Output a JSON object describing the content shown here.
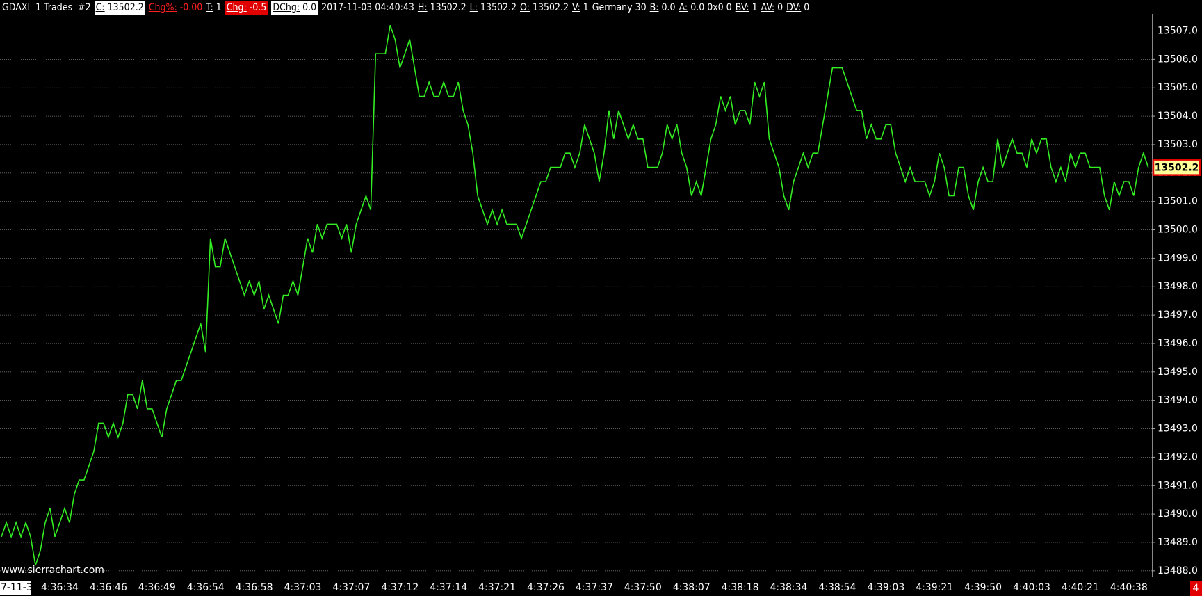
{
  "header": {
    "symbol": "GDAXI  1 Trades  #2",
    "fields": [
      {
        "label": "C:",
        "value": "13502.2"
      },
      {
        "label": "Chg%:",
        "value": "-0.00"
      },
      {
        "label": "T:",
        "value": "1"
      },
      {
        "label": "Chg:",
        "value": "-0.5"
      },
      {
        "label": "DChg:",
        "value": "0.0"
      },
      {
        "value": "2017-11-03 04:40:43"
      },
      {
        "label": "H:",
        "value": "13502.2"
      },
      {
        "label": "L:",
        "value": "13502.2"
      },
      {
        "label": "O:",
        "value": "13502.2"
      },
      {
        "label": "V:",
        "value": "1"
      },
      {
        "value": "Germany 30"
      },
      {
        "label": "B:",
        "value": "0.0"
      },
      {
        "label": "A:",
        "value": "0.0 0x0 0"
      },
      {
        "label": "BV:",
        "value": "1"
      },
      {
        "label": "AV:",
        "value": "0"
      },
      {
        "label": "DV:",
        "value": "0"
      }
    ]
  },
  "watermark": "www.sierrachart.com",
  "date_label": "7-11-3",
  "corner_label": "4",
  "chart_data": {
    "type": "line",
    "categories": [
      null,
      null,
      null,
      null,
      null,
      null,
      null,
      null,
      null,
      null,
      null,
      null,
      "4:36:34",
      null,
      null,
      null,
      null,
      null,
      null,
      null,
      null,
      null,
      "4:36:46",
      null,
      null,
      null,
      null,
      null,
      null,
      null,
      null,
      null,
      "4:36:49",
      null,
      null,
      null,
      null,
      null,
      null,
      null,
      null,
      null,
      "4:36:54",
      null,
      null,
      null,
      null,
      null,
      null,
      null,
      null,
      null,
      "4:36:58",
      null,
      null,
      null,
      null,
      null,
      null,
      null,
      null,
      null,
      "4:37:03",
      null,
      null,
      null,
      null,
      null,
      null,
      null,
      null,
      null,
      "4:37:07",
      null,
      null,
      null,
      null,
      null,
      null,
      null,
      null,
      null,
      "4:37:12",
      null,
      null,
      null,
      null,
      null,
      null,
      null,
      null,
      null,
      "4:37:14",
      null,
      null,
      null,
      null,
      null,
      null,
      null,
      null,
      null,
      "4:37:21",
      null,
      null,
      null,
      null,
      null,
      null,
      null,
      null,
      null,
      "4:37:26",
      null,
      null,
      null,
      null,
      null,
      null,
      null,
      null,
      null,
      "4:37:37",
      null,
      null,
      null,
      null,
      null,
      null,
      null,
      null,
      null,
      "4:37:50",
      null,
      null,
      null,
      null,
      null,
      null,
      null,
      null,
      null,
      "4:38:07",
      null,
      null,
      null,
      null,
      null,
      null,
      null,
      null,
      null,
      "4:38:18",
      null,
      null,
      null,
      null,
      null,
      null,
      null,
      null,
      null,
      "4:38:34",
      null,
      null,
      null,
      null,
      null,
      null,
      null,
      null,
      null,
      "4:38:54",
      null,
      null,
      null,
      null,
      null,
      null,
      null,
      null,
      null,
      "4:39:03",
      null,
      null,
      null,
      null,
      null,
      null,
      null,
      null,
      null,
      "4:39:21",
      null,
      null,
      null,
      null,
      null,
      null,
      null,
      null,
      null,
      "4:39:50",
      null,
      null,
      null,
      null,
      null,
      null,
      null,
      null,
      null,
      "4:40:03",
      null,
      null,
      null,
      null,
      null,
      null,
      null,
      null,
      null,
      "4:40:21",
      null,
      null,
      null,
      null,
      null,
      null,
      null,
      null,
      null,
      "4:40:38",
      null,
      null,
      null,
      null
    ],
    "series": [
      {
        "color": "#33ee22",
        "values": [
          13489.2,
          13489.7,
          13489.2,
          13489.7,
          13489.2,
          13489.7,
          13489.2,
          13488.2,
          13488.7,
          13489.7,
          13490.2,
          13489.2,
          13489.7,
          13490.2,
          13489.7,
          13490.7,
          13491.2,
          13491.2,
          13491.7,
          13492.2,
          13493.2,
          13493.2,
          13492.7,
          13493.2,
          13492.7,
          13493.2,
          13494.2,
          13494.2,
          13493.7,
          13494.7,
          13493.7,
          13493.7,
          13493.2,
          13492.7,
          13493.7,
          13494.2,
          13494.7,
          13494.7,
          13495.2,
          13495.7,
          13496.2,
          13496.7,
          13495.7,
          13499.7,
          13498.7,
          13498.7,
          13499.7,
          13499.2,
          13498.7,
          13498.2,
          13497.7,
          13498.2,
          13497.7,
          13498.2,
          13497.2,
          13497.7,
          13497.2,
          13496.7,
          13497.7,
          13497.7,
          13498.2,
          13497.7,
          13498.7,
          13499.7,
          13499.2,
          13500.2,
          13499.7,
          13500.2,
          13500.2,
          13500.2,
          13499.7,
          13500.2,
          13499.2,
          13500.2,
          13500.7,
          13501.2,
          13500.7,
          13506.2,
          13506.2,
          13506.2,
          13507.2,
          13506.7,
          13505.7,
          13506.2,
          13506.7,
          13505.7,
          13504.7,
          13504.7,
          13505.2,
          13504.7,
          13504.7,
          13505.2,
          13504.7,
          13504.7,
          13505.2,
          13504.2,
          13503.7,
          13502.7,
          13501.2,
          13500.7,
          13500.2,
          13500.7,
          13500.2,
          13500.7,
          13500.2,
          13500.2,
          13500.2,
          13499.7,
          13500.2,
          13500.7,
          13501.2,
          13501.7,
          13501.7,
          13502.2,
          13502.2,
          13502.2,
          13502.7,
          13502.7,
          13502.2,
          13502.7,
          13503.7,
          13503.2,
          13502.7,
          13501.7,
          13502.7,
          13504.2,
          13503.2,
          13504.2,
          13503.7,
          13503.2,
          13503.7,
          13503.2,
          13503.2,
          13502.2,
          13502.2,
          13502.2,
          13502.7,
          13503.7,
          13503.2,
          13503.7,
          13502.7,
          13502.2,
          13501.2,
          13501.7,
          13501.2,
          13502.2,
          13503.2,
          13503.7,
          13504.7,
          13504.2,
          13504.7,
          13503.7,
          13504.2,
          13504.2,
          13503.7,
          13505.2,
          13504.7,
          13505.2,
          13503.2,
          13502.7,
          13502.2,
          13501.2,
          13500.7,
          13501.7,
          13502.2,
          13502.7,
          13502.2,
          13502.7,
          13502.7,
          13503.7,
          13504.7,
          13505.7,
          13505.7,
          13505.7,
          13505.2,
          13504.7,
          13504.2,
          13504.2,
          13503.2,
          13503.7,
          13503.2,
          13503.2,
          13503.7,
          13503.7,
          13502.7,
          13502.2,
          13501.7,
          13502.2,
          13501.7,
          13501.7,
          13501.7,
          13501.2,
          13501.7,
          13502.7,
          13502.2,
          13501.2,
          13501.2,
          13502.2,
          13502.2,
          13501.2,
          13500.7,
          13501.7,
          13502.2,
          13501.7,
          13501.7,
          13503.2,
          13502.2,
          13502.7,
          13503.2,
          13502.7,
          13502.7,
          13502.2,
          13503.2,
          13502.7,
          13503.2,
          13503.2,
          13502.2,
          13501.7,
          13502.2,
          13501.7,
          13502.7,
          13502.2,
          13502.7,
          13502.7,
          13502.2,
          13502.2,
          13502.2,
          13501.2,
          13500.7,
          13501.7,
          13501.2,
          13501.7,
          13501.7,
          13501.2,
          13502.2,
          13502.7,
          13502.2
        ],
        "value_labels": [
          null,
          null,
          null,
          null,
          null,
          null,
          null,
          null,
          null,
          null,
          null,
          null,
          null,
          null,
          null,
          null,
          null,
          null,
          null,
          null,
          null,
          null,
          null,
          null,
          null,
          null,
          null,
          null,
          null,
          null,
          null,
          null,
          null,
          null,
          null,
          null,
          null,
          null,
          null,
          null,
          null,
          null,
          null,
          null,
          null,
          null,
          null,
          null,
          null,
          null,
          null,
          null,
          null,
          null,
          null,
          null,
          null,
          null,
          null,
          null,
          null,
          null,
          null,
          null,
          null,
          null,
          null,
          null,
          null,
          null,
          null,
          null,
          null,
          null,
          null,
          null,
          null,
          null,
          null,
          null,
          null,
          null,
          null,
          null,
          null,
          null,
          null,
          null,
          null,
          null,
          null,
          null,
          null,
          null,
          null,
          null,
          null,
          null,
          null,
          null,
          null,
          null,
          null,
          null,
          null,
          null,
          null,
          null,
          null,
          null,
          null,
          null,
          null,
          null,
          null,
          null,
          null,
          null,
          null,
          null,
          null,
          null,
          null,
          null,
          null,
          null,
          null,
          null,
          null,
          null,
          null,
          null,
          null,
          null,
          null,
          null,
          null,
          null,
          null,
          null,
          null,
          null,
          null,
          null,
          null,
          null,
          null,
          null,
          null,
          null,
          null,
          null,
          null,
          null,
          null,
          null,
          null,
          null,
          null,
          null,
          null,
          null,
          null,
          null,
          null,
          null,
          null,
          null,
          null,
          null,
          null,
          null,
          null,
          null,
          null,
          null,
          null,
          null,
          null,
          null,
          null,
          null,
          null,
          null,
          null,
          null,
          null,
          null,
          null,
          null,
          null,
          null,
          null,
          null,
          null,
          null,
          null,
          null,
          null,
          null,
          null,
          null,
          null,
          null,
          null,
          null,
          null,
          null,
          null,
          null,
          null,
          null,
          null,
          null,
          null,
          null,
          null,
          null,
          null,
          null,
          null,
          null,
          null,
          null,
          null,
          null,
          null,
          null,
          null,
          null,
          null,
          null,
          null,
          null,
          null,
          null,
          "13502.2"
        ]
      }
    ],
    "ylim": [
      13487.8,
      13507.6
    ],
    "yticks": [
      {
        "value": 13488,
        "label": "13488.0"
      },
      {
        "value": 13489,
        "label": "13489.0"
      },
      {
        "value": 13490,
        "label": "13490.0"
      },
      {
        "value": 13491,
        "label": "13491.0"
      },
      {
        "value": 13492,
        "label": "13492.0"
      },
      {
        "value": 13493,
        "label": "13493.0"
      },
      {
        "value": 13494,
        "label": "13494.0"
      },
      {
        "value": 13495,
        "label": "13495.0"
      },
      {
        "value": 13496,
        "label": "13496.0"
      },
      {
        "value": 13497,
        "label": "13497.0"
      },
      {
        "value": 13498,
        "label": "13498.0"
      },
      {
        "value": 13499,
        "label": "13499.0"
      },
      {
        "value": 13500,
        "label": "13500.0"
      },
      {
        "value": 13501,
        "label": "13501.0"
      },
      {
        "value": 13502,
        "label": "13502.0"
      },
      {
        "value": 13503,
        "label": "13503.0"
      },
      {
        "value": 13504,
        "label": "13504.0"
      },
      {
        "value": 13505,
        "label": "13505.0"
      },
      {
        "value": 13506,
        "label": "13506.0"
      },
      {
        "value": 13507,
        "label": "13507.0"
      }
    ],
    "grid": true
  }
}
